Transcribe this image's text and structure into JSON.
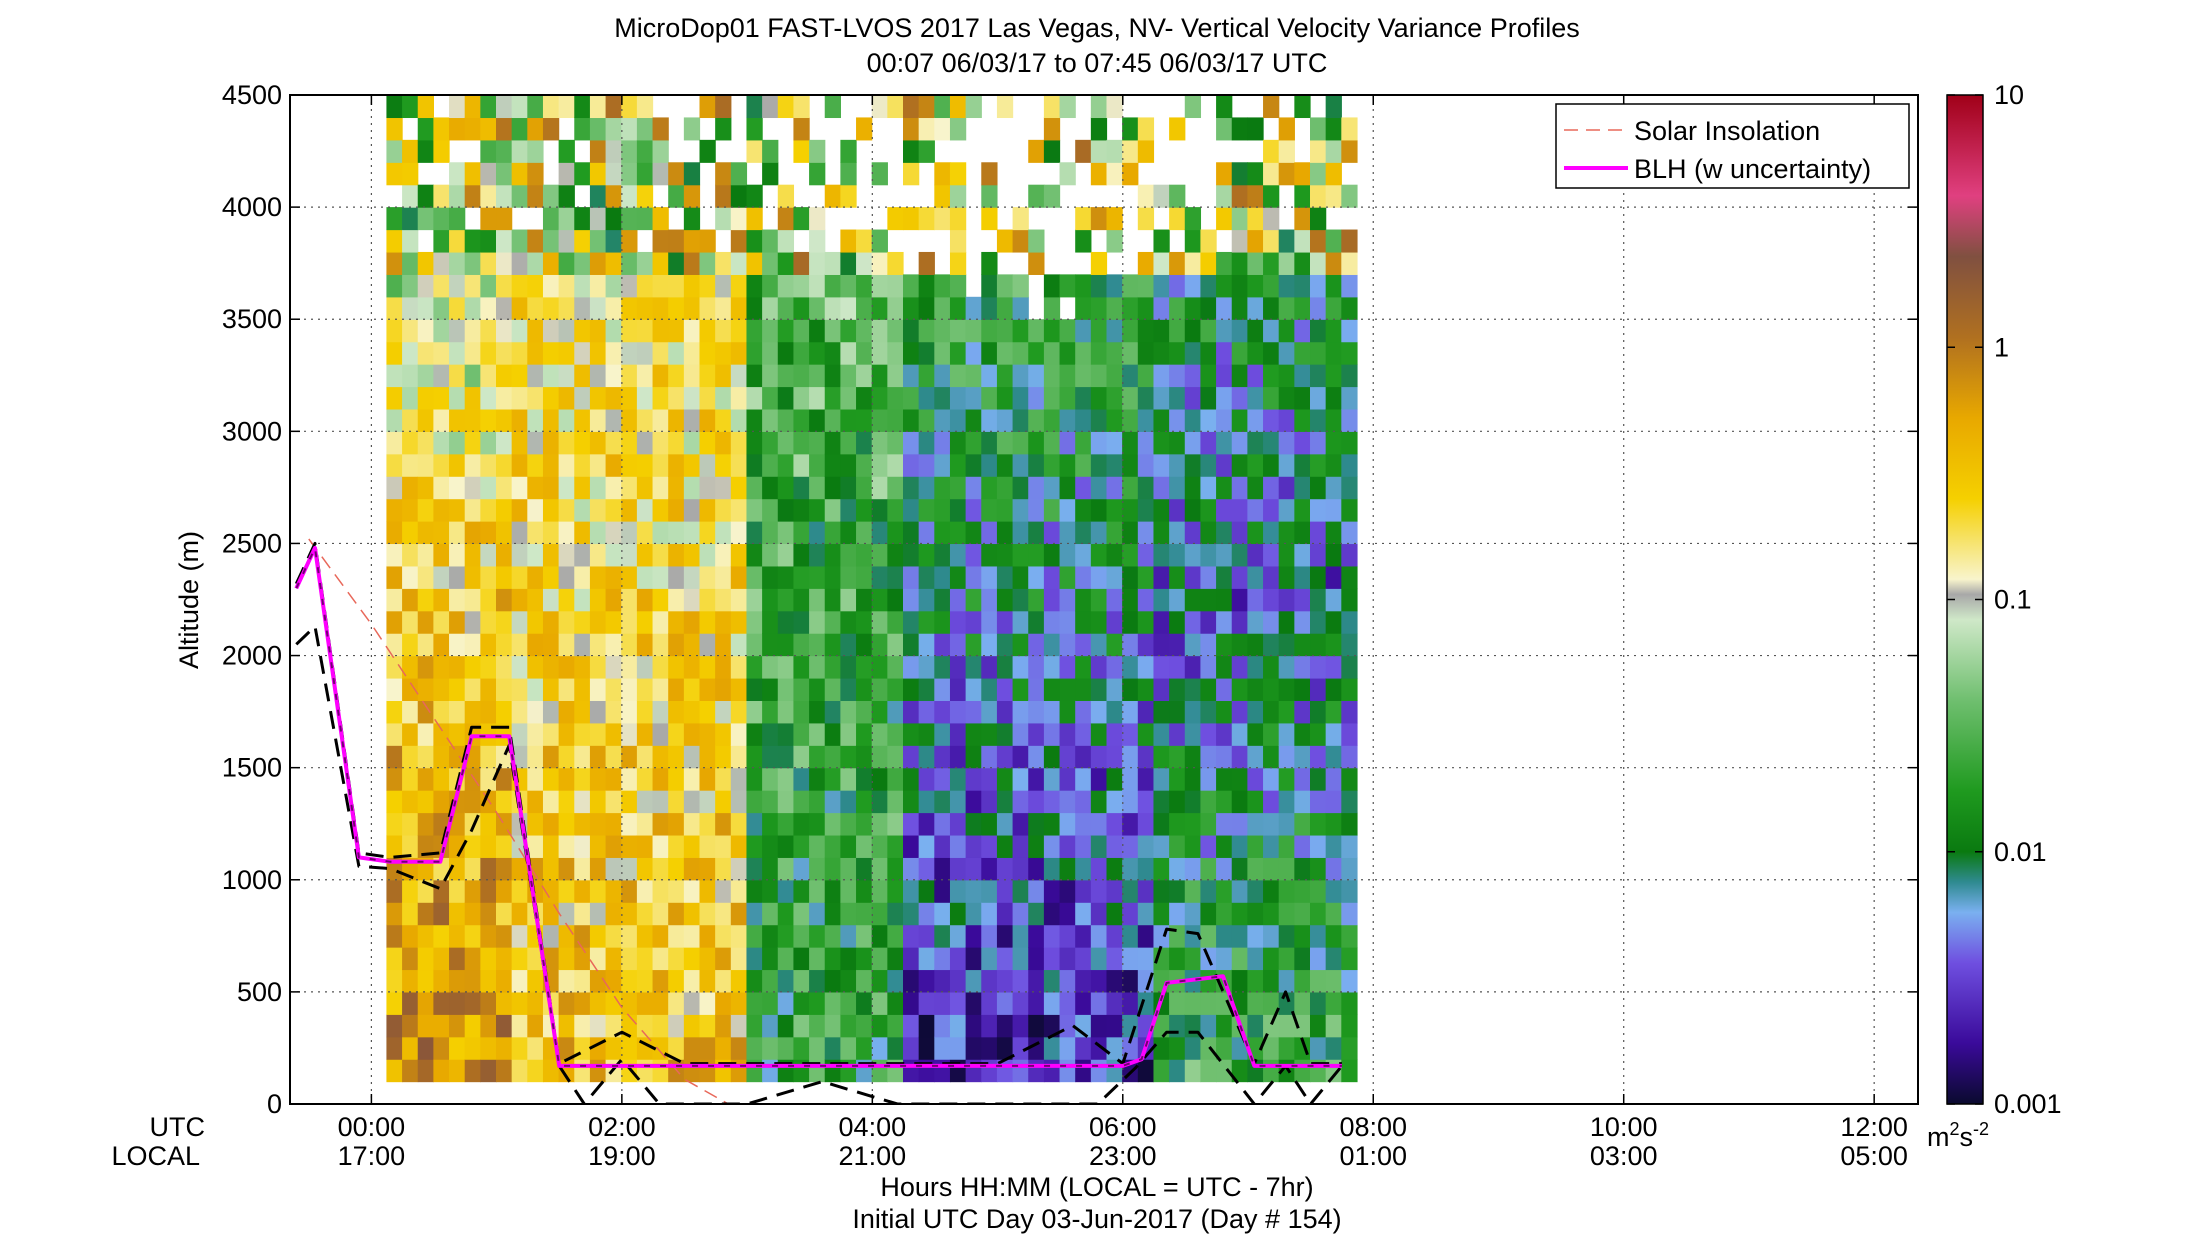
{
  "chart_data": {
    "type": "heatmap",
    "title": "MicroDop01 FAST-LVOS 2017 Las Vegas, NV- Vertical Velocity Variance Profiles",
    "subtitle": "00:07 06/03/17 to 07:45 06/03/17  UTC",
    "ylabel": "Altitude (m)",
    "xlabel": "Hours HH:MM  (LOCAL = UTC - 7hr)",
    "xlabel2": "Initial UTC Day 03-Jun-2017 (Day # 154)",
    "xrow_labels": [
      "UTC",
      "LOCAL"
    ],
    "ylim": [
      0,
      4500
    ],
    "xlim_hours_utc": [
      -0.65,
      12.35
    ],
    "grid": true,
    "y_ticks": [
      {
        "v": 0,
        "label": "0"
      },
      {
        "v": 500,
        "label": "500"
      },
      {
        "v": 1000,
        "label": "1000"
      },
      {
        "v": 1500,
        "label": "1500"
      },
      {
        "v": 2000,
        "label": "2000"
      },
      {
        "v": 2500,
        "label": "2500"
      },
      {
        "v": 3000,
        "label": "3000"
      },
      {
        "v": 3500,
        "label": "3500"
      },
      {
        "v": 4000,
        "label": "4000"
      },
      {
        "v": 4500,
        "label": "4500"
      }
    ],
    "x_ticks": [
      {
        "h": 0,
        "utc": "00:00",
        "local": "17:00"
      },
      {
        "h": 2,
        "utc": "02:00",
        "local": "19:00"
      },
      {
        "h": 4,
        "utc": "04:00",
        "local": "21:00"
      },
      {
        "h": 6,
        "utc": "06:00",
        "local": "23:00"
      },
      {
        "h": 8,
        "utc": "08:00",
        "local": "01:00"
      },
      {
        "h": 10,
        "utc": "10:00",
        "local": "03:00"
      },
      {
        "h": 12,
        "utc": "12:00",
        "local": "05:00"
      }
    ],
    "colorbar": {
      "scale": "log",
      "range": [
        0.001,
        10
      ],
      "ticks": [
        "0.001",
        "0.01",
        "0.1",
        "1",
        "10"
      ],
      "unit_main": "m",
      "unit_sup1": "2",
      "unit_mid": "s",
      "unit_sup2": "-2"
    },
    "legend": {
      "position": "top-right",
      "entries": [
        {
          "label": "Solar Insolation",
          "color": "#e8685a",
          "style": "dashed"
        },
        {
          "label": "BLH (w uncertainty)",
          "color": "#ff00ff",
          "style": "solid"
        }
      ]
    },
    "heatmap": {
      "x_start_h": 0.12,
      "x_end_h": 7.75,
      "y_start_m": 100,
      "y_step_m": 100,
      "top_rows_hours": [
        0,
        0.25,
        1.75,
        3.5,
        5.5,
        7.5
      ],
      "top_rows_height_m": [
        4500,
        4500,
        4500,
        3800,
        3450,
        4400
      ],
      "value_bands": [
        {
          "from_h": 0.12,
          "to_h": 1.1,
          "low_log": -0.1,
          "mid_log": -0.6,
          "high_log": -1.5
        },
        {
          "from_h": 1.1,
          "to_h": 3.0,
          "low_log": -0.5,
          "mid_log": -0.7,
          "high_log": -0.9
        },
        {
          "from_h": 3.0,
          "to_h": 4.2,
          "low_log": -1.8,
          "mid_log": -1.7,
          "high_log": -1.4
        },
        {
          "from_h": 4.2,
          "to_h": 6.2,
          "low_log": -2.6,
          "mid_log": -2.1,
          "high_log": -1.5
        },
        {
          "from_h": 6.2,
          "to_h": 7.75,
          "low_log": -1.7,
          "mid_log": -2.3,
          "high_log": -1.7
        }
      ]
    },
    "series": [
      {
        "name": "BLH (w uncertainty)",
        "x": [
          -0.6,
          -0.45,
          -0.1,
          0.15,
          0.55,
          0.8,
          1.1,
          1.5,
          2,
          3,
          4,
          5,
          6,
          6.15,
          6.35,
          6.8,
          7.05,
          7.5,
          7.75
        ],
        "y": [
          2300,
          2480,
          1100,
          1080,
          1080,
          1640,
          1640,
          170,
          170,
          170,
          170,
          170,
          170,
          200,
          540,
          570,
          170,
          170,
          170
        ]
      },
      {
        "name": "BLH upper",
        "x": [
          -0.6,
          -0.45,
          -0.1,
          0.15,
          0.55,
          0.8,
          1.1,
          1.5,
          2,
          2.5,
          3,
          4,
          5,
          5.6,
          6,
          6.35,
          6.6,
          7.05,
          7.3,
          7.5,
          7.75
        ],
        "y": [
          2320,
          2500,
          1120,
          1100,
          1120,
          1680,
          1680,
          180,
          320,
          180,
          180,
          180,
          180,
          350,
          180,
          780,
          760,
          180,
          500,
          180,
          180
        ]
      },
      {
        "name": "BLH lower",
        "x": [
          -0.6,
          -0.45,
          -0.1,
          0.15,
          0.55,
          0.8,
          1.1,
          1.5,
          1.7,
          2,
          2.3,
          3,
          3.6,
          4.2,
          5,
          5.8,
          6.1,
          6.35,
          6.6,
          7.05,
          7.3,
          7.5,
          7.75
        ],
        "y": [
          2050,
          2130,
          1060,
          1050,
          960,
          1220,
          1600,
          170,
          0,
          200,
          0,
          0,
          100,
          0,
          0,
          0,
          160,
          320,
          320,
          0,
          170,
          0,
          170
        ]
      },
      {
        "name": "Solar Insolation",
        "x": [
          -0.5,
          0.0,
          0.5,
          1.0,
          1.5,
          2.0,
          2.5,
          2.85
        ],
        "y": [
          2520,
          2140,
          1720,
          1300,
          850,
          430,
          110,
          0
        ]
      }
    ]
  }
}
